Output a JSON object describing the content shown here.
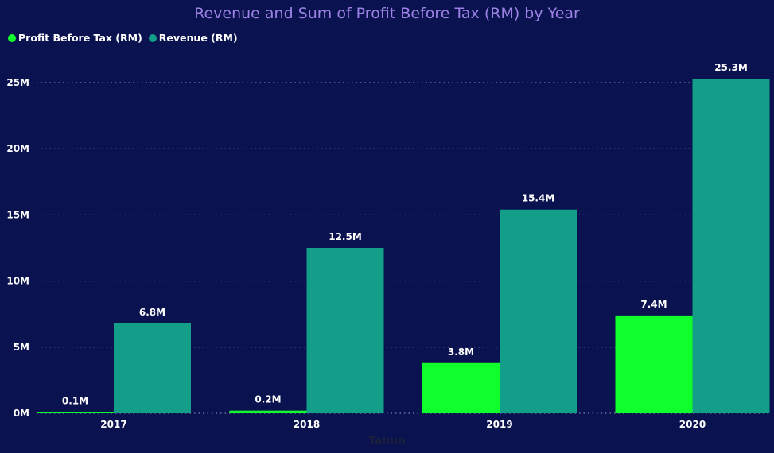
{
  "chart_data": {
    "type": "bar",
    "title": "Revenue and Sum of Profit Before Tax (RM) by Year",
    "xlabel": "Tahun",
    "ylabel": "",
    "categories": [
      "2017",
      "2018",
      "2019",
      "2020"
    ],
    "series": [
      {
        "name": "Profit Before Tax (RM)",
        "color": "#10ff2c",
        "values": [
          0.1,
          0.2,
          3.8,
          7.4
        ],
        "labels": [
          "0.1M",
          "0.2M",
          "3.8M",
          "7.4M"
        ]
      },
      {
        "name": "Revenue (RM)",
        "color": "#129e88",
        "values": [
          6.8,
          12.5,
          15.4,
          25.3
        ],
        "labels": [
          "6.8M",
          "12.5M",
          "15.4M",
          "25.3M"
        ]
      }
    ],
    "yticks": [
      0,
      5,
      10,
      15,
      20,
      25
    ],
    "ytick_labels": [
      "0M",
      "5M",
      "10M",
      "15M",
      "20M",
      "25M"
    ],
    "ylim": [
      0,
      25
    ],
    "unit": "M",
    "grid": true,
    "legend": "top-left"
  }
}
